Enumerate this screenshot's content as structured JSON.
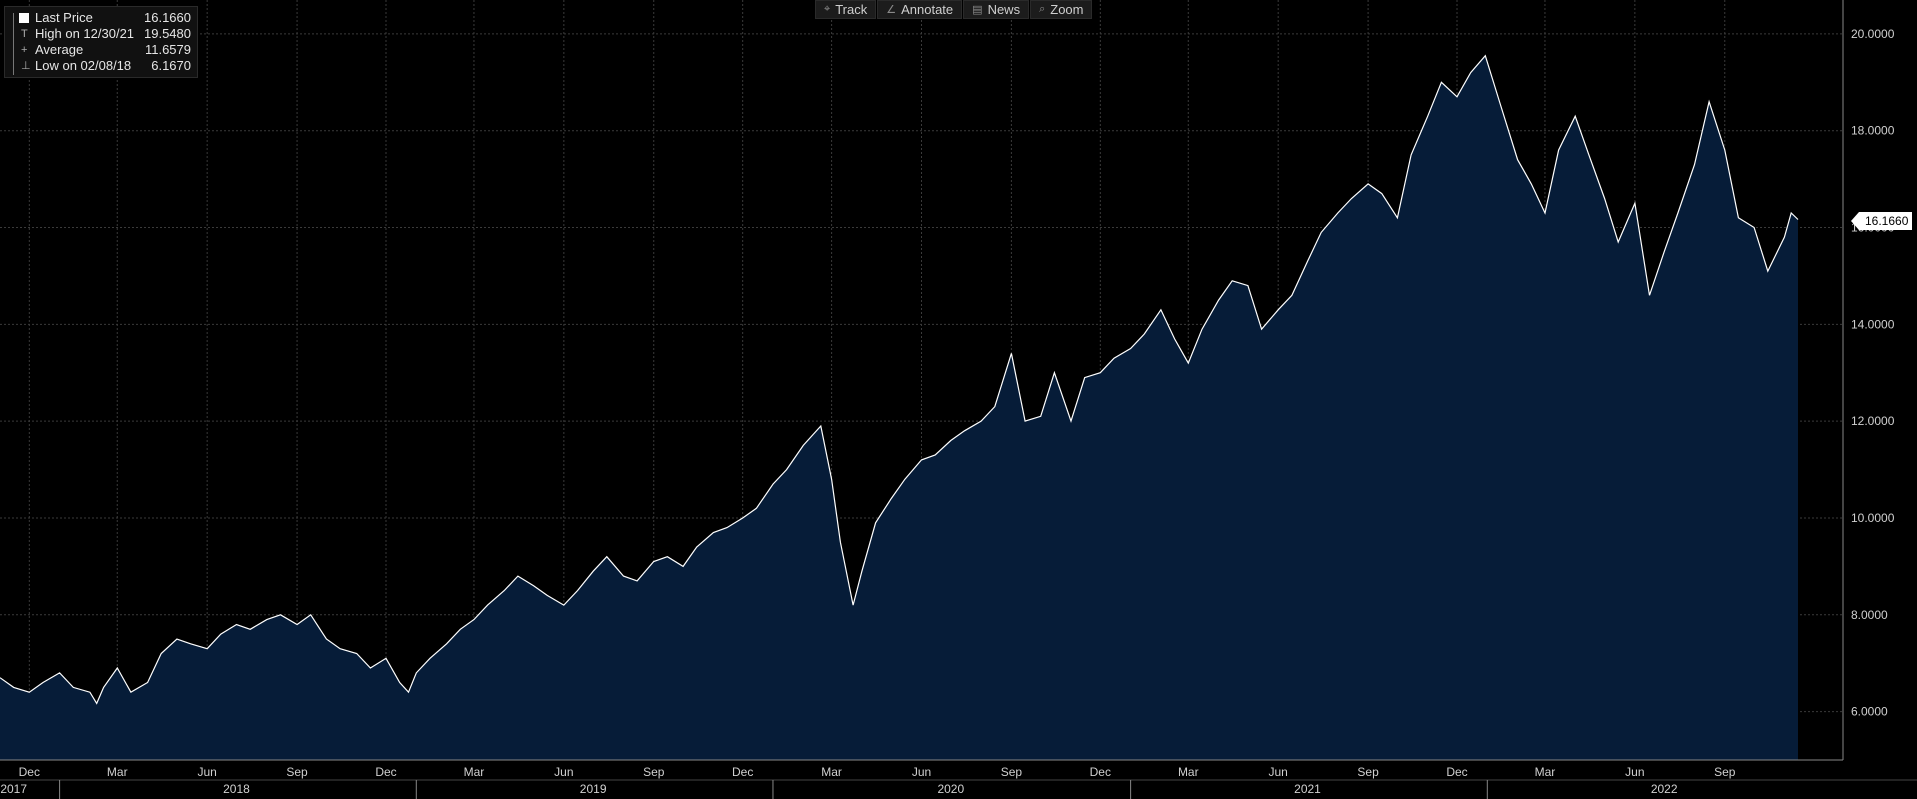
{
  "legend": {
    "items": [
      {
        "label": "Last Price",
        "value": "16.1660",
        "glyph": "square"
      },
      {
        "label": "High on 12/30/21",
        "value": "19.5480",
        "glyph": "T"
      },
      {
        "label": "Average",
        "value": "11.6579",
        "glyph": "+"
      },
      {
        "label": "Low on 02/08/18",
        "value": "6.1670",
        "glyph": "⊥"
      }
    ]
  },
  "toolbar": {
    "buttons": [
      {
        "label": "Track",
        "icon": "crosshair-icon",
        "glyph": "⌖"
      },
      {
        "label": "Annotate",
        "icon": "pencil-icon",
        "glyph": "∠"
      },
      {
        "label": "News",
        "icon": "news-icon",
        "glyph": "▤"
      },
      {
        "label": "Zoom",
        "icon": "magnifier-icon",
        "glyph": "⌕"
      }
    ]
  },
  "last_price_tag": "16.1660",
  "colors": {
    "background": "#000000",
    "area_fill": "#061c38",
    "line": "#ffffff",
    "grid": "#3a3a3a"
  },
  "chart_data": {
    "type": "area",
    "title": "",
    "xlabel": "",
    "ylabel": "",
    "ylim": [
      5.0,
      20.7
    ],
    "xlim": [
      "2017-11-01",
      "2022-12-31"
    ],
    "grid": true,
    "legend_position": "top-left",
    "y_ticks": [
      "6.0000",
      "8.0000",
      "10.0000",
      "12.0000",
      "14.0000",
      "16.0000",
      "18.0000",
      "20.0000"
    ],
    "x_ticks": [
      {
        "label": "Dec",
        "date": "2017-12-01"
      },
      {
        "label": "Mar",
        "date": "2018-03-01"
      },
      {
        "label": "Jun",
        "date": "2018-06-01"
      },
      {
        "label": "Sep",
        "date": "2018-09-01"
      },
      {
        "label": "Dec",
        "date": "2018-12-01"
      },
      {
        "label": "Mar",
        "date": "2019-03-01"
      },
      {
        "label": "Jun",
        "date": "2019-06-01"
      },
      {
        "label": "Sep",
        "date": "2019-09-01"
      },
      {
        "label": "Dec",
        "date": "2019-12-01"
      },
      {
        "label": "Mar",
        "date": "2020-03-01"
      },
      {
        "label": "Jun",
        "date": "2020-06-01"
      },
      {
        "label": "Sep",
        "date": "2020-09-01"
      },
      {
        "label": "Dec",
        "date": "2020-12-01"
      },
      {
        "label": "Mar",
        "date": "2021-03-01"
      },
      {
        "label": "Jun",
        "date": "2021-06-01"
      },
      {
        "label": "Sep",
        "date": "2021-09-01"
      },
      {
        "label": "Dec",
        "date": "2021-12-01"
      },
      {
        "label": "Mar",
        "date": "2022-03-01"
      },
      {
        "label": "Jun",
        "date": "2022-06-01"
      },
      {
        "label": "Sep",
        "date": "2022-09-01"
      }
    ],
    "year_labels": [
      {
        "label": "2017",
        "date": "2017-11-15"
      },
      {
        "label": "2018",
        "date": "2018-07-01"
      },
      {
        "label": "2019",
        "date": "2019-07-01"
      },
      {
        "label": "2020",
        "date": "2020-07-01"
      },
      {
        "label": "2021",
        "date": "2021-07-01"
      },
      {
        "label": "2022",
        "date": "2022-07-01"
      }
    ],
    "year_boundaries": [
      "2018-01-01",
      "2019-01-01",
      "2020-01-01",
      "2021-01-01",
      "2022-01-01"
    ],
    "series": [
      {
        "name": "Last Price",
        "x": [
          "2017-11-01",
          "2017-11-15",
          "2017-12-01",
          "2017-12-15",
          "2018-01-01",
          "2018-01-15",
          "2018-02-01",
          "2018-02-08",
          "2018-02-15",
          "2018-03-01",
          "2018-03-15",
          "2018-04-01",
          "2018-04-15",
          "2018-05-01",
          "2018-05-15",
          "2018-06-01",
          "2018-06-15",
          "2018-07-01",
          "2018-07-15",
          "2018-08-01",
          "2018-08-15",
          "2018-09-01",
          "2018-09-15",
          "2018-10-01",
          "2018-10-15",
          "2018-11-01",
          "2018-11-15",
          "2018-12-01",
          "2018-12-15",
          "2018-12-24",
          "2019-01-01",
          "2019-01-15",
          "2019-02-01",
          "2019-02-15",
          "2019-03-01",
          "2019-03-15",
          "2019-04-01",
          "2019-04-15",
          "2019-05-01",
          "2019-05-15",
          "2019-06-01",
          "2019-06-15",
          "2019-07-01",
          "2019-07-15",
          "2019-08-01",
          "2019-08-15",
          "2019-09-01",
          "2019-09-15",
          "2019-10-01",
          "2019-10-15",
          "2019-11-01",
          "2019-11-15",
          "2019-12-01",
          "2019-12-15",
          "2020-01-01",
          "2020-01-15",
          "2020-02-01",
          "2020-02-19",
          "2020-03-01",
          "2020-03-10",
          "2020-03-23",
          "2020-04-01",
          "2020-04-15",
          "2020-05-01",
          "2020-05-15",
          "2020-06-01",
          "2020-06-15",
          "2020-07-01",
          "2020-07-15",
          "2020-08-01",
          "2020-08-15",
          "2020-09-01",
          "2020-09-15",
          "2020-10-01",
          "2020-10-15",
          "2020-11-01",
          "2020-11-15",
          "2020-12-01",
          "2020-12-15",
          "2021-01-01",
          "2021-01-15",
          "2021-02-01",
          "2021-02-15",
          "2021-03-01",
          "2021-03-15",
          "2021-04-01",
          "2021-04-15",
          "2021-05-01",
          "2021-05-15",
          "2021-06-01",
          "2021-06-15",
          "2021-07-01",
          "2021-07-15",
          "2021-08-01",
          "2021-08-15",
          "2021-09-01",
          "2021-09-15",
          "2021-10-01",
          "2021-10-15",
          "2021-11-01",
          "2021-11-15",
          "2021-12-01",
          "2021-12-15",
          "2021-12-30",
          "2022-01-15",
          "2022-02-01",
          "2022-02-15",
          "2022-03-01",
          "2022-03-15",
          "2022-04-01",
          "2022-04-15",
          "2022-05-01",
          "2022-05-15",
          "2022-06-01",
          "2022-06-16",
          "2022-07-01",
          "2022-07-15",
          "2022-08-01",
          "2022-08-16",
          "2022-09-01",
          "2022-09-15",
          "2022-10-01",
          "2022-10-15",
          "2022-11-01",
          "2022-11-08",
          "2022-11-15"
        ],
        "y": [
          6.7,
          6.5,
          6.4,
          6.6,
          6.8,
          6.5,
          6.4,
          6.17,
          6.5,
          6.9,
          6.4,
          6.6,
          7.2,
          7.5,
          7.4,
          7.3,
          7.6,
          7.8,
          7.7,
          7.9,
          8.0,
          7.8,
          8.0,
          7.5,
          7.3,
          7.2,
          6.9,
          7.1,
          6.6,
          6.4,
          6.8,
          7.1,
          7.4,
          7.7,
          7.9,
          8.2,
          8.5,
          8.8,
          8.6,
          8.4,
          8.2,
          8.5,
          8.9,
          9.2,
          8.8,
          8.7,
          9.1,
          9.2,
          9.0,
          9.4,
          9.7,
          9.8,
          10.0,
          10.2,
          10.7,
          11.0,
          11.5,
          11.9,
          10.8,
          9.5,
          8.2,
          8.9,
          9.9,
          10.4,
          10.8,
          11.2,
          11.3,
          11.6,
          11.8,
          12.0,
          12.3,
          13.4,
          12.0,
          12.1,
          13.0,
          12.0,
          12.9,
          13.0,
          13.3,
          13.5,
          13.8,
          14.3,
          13.7,
          13.2,
          13.9,
          14.5,
          14.9,
          14.8,
          13.9,
          14.3,
          14.6,
          15.3,
          15.9,
          16.3,
          16.6,
          16.9,
          16.7,
          16.2,
          17.5,
          18.3,
          19.0,
          18.7,
          19.2,
          19.55,
          18.5,
          17.4,
          16.9,
          16.3,
          17.6,
          18.3,
          17.5,
          16.6,
          15.7,
          16.5,
          14.6,
          15.5,
          16.3,
          17.3,
          18.6,
          17.6,
          16.2,
          16.0,
          15.1,
          15.8,
          16.3,
          16.166
        ]
      }
    ]
  }
}
